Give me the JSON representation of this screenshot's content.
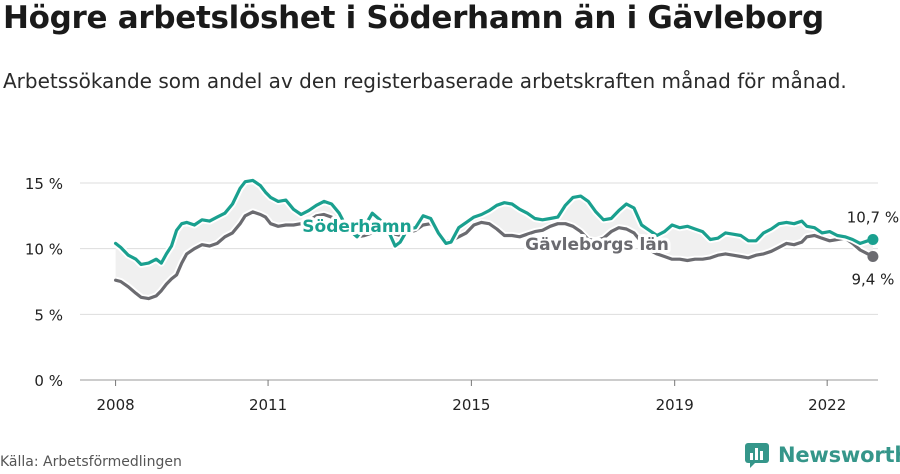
{
  "header": {
    "title": "Högre arbetslöshet i Söderhamn än i Gävleborg",
    "subtitle": "Arbetssökande som andel av den registerbaserade arbetskraften månad för månad."
  },
  "footer": {
    "source": "Källa: Arbetsförmedlingen",
    "brand": "Newsworthy"
  },
  "colors": {
    "soderhamn": "#1aa08f",
    "gavleborg": "#6b6b70",
    "fill": "#f0f0f0",
    "grid": "#dddddd"
  },
  "chart_data": {
    "type": "line",
    "title": "Högre arbetslöshet i Söderhamn än i Gävleborg",
    "ylim": [
      0,
      15
    ],
    "y_ticks": [
      "0 %",
      "5 %",
      "10 %",
      "15 %"
    ],
    "x_ticks": [
      "2008",
      "2011",
      "2015",
      "2019",
      "2022"
    ],
    "x_tick_values": [
      2008,
      2011,
      2015,
      2019,
      2022
    ],
    "x_range": [
      2007.3,
      2023.0
    ],
    "grid": true,
    "series": [
      {
        "name": "Söderhamn",
        "end_label": "10,7 %",
        "points": [
          [
            2008.0,
            10.4
          ],
          [
            2008.1,
            10.1
          ],
          [
            2008.25,
            9.5
          ],
          [
            2008.4,
            9.2
          ],
          [
            2008.5,
            8.8
          ],
          [
            2008.65,
            8.9
          ],
          [
            2008.8,
            9.2
          ],
          [
            2008.9,
            8.9
          ],
          [
            2009.0,
            9.6
          ],
          [
            2009.1,
            10.2
          ],
          [
            2009.2,
            11.4
          ],
          [
            2009.3,
            11.9
          ],
          [
            2009.4,
            12.0
          ],
          [
            2009.55,
            11.8
          ],
          [
            2009.7,
            12.2
          ],
          [
            2009.85,
            12.1
          ],
          [
            2010.0,
            12.4
          ],
          [
            2010.15,
            12.7
          ],
          [
            2010.3,
            13.4
          ],
          [
            2010.45,
            14.6
          ],
          [
            2010.55,
            15.1
          ],
          [
            2010.7,
            15.2
          ],
          [
            2010.85,
            14.8
          ],
          [
            2010.95,
            14.3
          ],
          [
            2011.05,
            13.9
          ],
          [
            2011.2,
            13.6
          ],
          [
            2011.35,
            13.7
          ],
          [
            2011.5,
            13.0
          ],
          [
            2011.65,
            12.6
          ],
          [
            2011.8,
            12.9
          ],
          [
            2011.95,
            13.3
          ],
          [
            2012.1,
            13.6
          ],
          [
            2012.25,
            13.4
          ],
          [
            2012.4,
            12.7
          ],
          [
            2012.55,
            11.6
          ],
          [
            2012.75,
            10.9
          ],
          [
            2012.9,
            11.7
          ],
          [
            2013.05,
            12.7
          ],
          [
            2013.2,
            12.2
          ],
          [
            2013.35,
            11.5
          ],
          [
            2013.5,
            10.2
          ],
          [
            2013.6,
            10.5
          ],
          [
            2013.75,
            11.5
          ],
          [
            2013.9,
            11.6
          ],
          [
            2014.05,
            12.5
          ],
          [
            2014.2,
            12.3
          ],
          [
            2014.35,
            11.2
          ],
          [
            2014.5,
            10.4
          ],
          [
            2014.6,
            10.5
          ],
          [
            2014.75,
            11.6
          ],
          [
            2014.9,
            12.0
          ],
          [
            2015.05,
            12.4
          ],
          [
            2015.2,
            12.6
          ],
          [
            2015.35,
            12.9
          ],
          [
            2015.5,
            13.3
          ],
          [
            2015.65,
            13.5
          ],
          [
            2015.8,
            13.4
          ],
          [
            2015.95,
            13.0
          ],
          [
            2016.1,
            12.7
          ],
          [
            2016.25,
            12.3
          ],
          [
            2016.4,
            12.2
          ],
          [
            2016.55,
            12.3
          ],
          [
            2016.7,
            12.4
          ],
          [
            2016.85,
            13.3
          ],
          [
            2017.0,
            13.9
          ],
          [
            2017.15,
            14.0
          ],
          [
            2017.3,
            13.6
          ],
          [
            2017.45,
            12.8
          ],
          [
            2017.6,
            12.2
          ],
          [
            2017.75,
            12.3
          ],
          [
            2017.9,
            12.9
          ],
          [
            2018.05,
            13.4
          ],
          [
            2018.2,
            13.1
          ],
          [
            2018.35,
            11.8
          ],
          [
            2018.5,
            11.4
          ],
          [
            2018.65,
            11.0
          ],
          [
            2018.8,
            11.3
          ],
          [
            2018.95,
            11.8
          ],
          [
            2019.1,
            11.6
          ],
          [
            2019.25,
            11.7
          ],
          [
            2019.4,
            11.5
          ],
          [
            2019.55,
            11.3
          ],
          [
            2019.7,
            10.7
          ],
          [
            2019.85,
            10.8
          ],
          [
            2020.0,
            11.2
          ],
          [
            2020.15,
            11.1
          ],
          [
            2020.3,
            11.0
          ],
          [
            2020.45,
            10.6
          ],
          [
            2020.6,
            10.6
          ],
          [
            2020.75,
            11.2
          ],
          [
            2020.9,
            11.5
          ],
          [
            2021.05,
            11.9
          ],
          [
            2021.2,
            12.0
          ],
          [
            2021.35,
            11.9
          ],
          [
            2021.5,
            12.1
          ],
          [
            2021.6,
            11.7
          ],
          [
            2021.75,
            11.6
          ],
          [
            2021.9,
            11.2
          ],
          [
            2022.05,
            11.3
          ],
          [
            2022.2,
            11.0
          ],
          [
            2022.35,
            10.9
          ],
          [
            2022.5,
            10.7
          ],
          [
            2022.65,
            10.4
          ],
          [
            2022.8,
            10.6
          ],
          [
            2022.9,
            10.7
          ]
        ]
      },
      {
        "name": "Gävleborgs län",
        "end_label": "9,4 %",
        "points": [
          [
            2008.0,
            7.6
          ],
          [
            2008.1,
            7.5
          ],
          [
            2008.25,
            7.1
          ],
          [
            2008.4,
            6.6
          ],
          [
            2008.5,
            6.3
          ],
          [
            2008.65,
            6.2
          ],
          [
            2008.8,
            6.4
          ],
          [
            2008.9,
            6.8
          ],
          [
            2009.0,
            7.3
          ],
          [
            2009.1,
            7.7
          ],
          [
            2009.2,
            8.0
          ],
          [
            2009.3,
            8.9
          ],
          [
            2009.4,
            9.6
          ],
          [
            2009.55,
            10.0
          ],
          [
            2009.7,
            10.3
          ],
          [
            2009.85,
            10.2
          ],
          [
            2010.0,
            10.4
          ],
          [
            2010.15,
            10.9
          ],
          [
            2010.3,
            11.2
          ],
          [
            2010.45,
            11.9
          ],
          [
            2010.55,
            12.5
          ],
          [
            2010.7,
            12.8
          ],
          [
            2010.85,
            12.6
          ],
          [
            2010.95,
            12.4
          ],
          [
            2011.05,
            11.9
          ],
          [
            2011.2,
            11.7
          ],
          [
            2011.35,
            11.8
          ],
          [
            2011.5,
            11.8
          ],
          [
            2011.65,
            11.9
          ],
          [
            2011.8,
            12.1
          ],
          [
            2011.95,
            12.5
          ],
          [
            2012.1,
            12.6
          ],
          [
            2012.25,
            12.4
          ],
          [
            2012.4,
            11.9
          ],
          [
            2012.55,
            11.4
          ],
          [
            2012.75,
            10.9
          ],
          [
            2012.9,
            11.0
          ],
          [
            2013.05,
            11.2
          ],
          [
            2013.2,
            11.4
          ],
          [
            2013.35,
            11.3
          ],
          [
            2013.5,
            11.1
          ],
          [
            2013.6,
            11.0
          ],
          [
            2013.75,
            11.2
          ],
          [
            2013.9,
            11.4
          ],
          [
            2014.05,
            11.8
          ],
          [
            2014.2,
            11.9
          ],
          [
            2014.35,
            11.2
          ],
          [
            2014.5,
            10.6
          ],
          [
            2014.6,
            10.6
          ],
          [
            2014.75,
            10.9
          ],
          [
            2014.9,
            11.2
          ],
          [
            2015.05,
            11.8
          ],
          [
            2015.2,
            12.0
          ],
          [
            2015.35,
            11.9
          ],
          [
            2015.5,
            11.5
          ],
          [
            2015.65,
            11.0
          ],
          [
            2015.8,
            11.0
          ],
          [
            2015.95,
            10.9
          ],
          [
            2016.1,
            11.1
          ],
          [
            2016.25,
            11.3
          ],
          [
            2016.4,
            11.4
          ],
          [
            2016.55,
            11.7
          ],
          [
            2016.7,
            11.9
          ],
          [
            2016.85,
            11.9
          ],
          [
            2017.0,
            11.7
          ],
          [
            2017.15,
            11.3
          ],
          [
            2017.3,
            10.7
          ],
          [
            2017.45,
            10.6
          ],
          [
            2017.6,
            10.8
          ],
          [
            2017.75,
            11.3
          ],
          [
            2017.9,
            11.6
          ],
          [
            2018.05,
            11.5
          ],
          [
            2018.2,
            11.2
          ],
          [
            2018.35,
            10.5
          ],
          [
            2018.5,
            9.9
          ],
          [
            2018.65,
            9.6
          ],
          [
            2018.8,
            9.4
          ],
          [
            2018.95,
            9.2
          ],
          [
            2019.1,
            9.2
          ],
          [
            2019.25,
            9.1
          ],
          [
            2019.4,
            9.2
          ],
          [
            2019.55,
            9.2
          ],
          [
            2019.7,
            9.3
          ],
          [
            2019.85,
            9.5
          ],
          [
            2020.0,
            9.6
          ],
          [
            2020.15,
            9.5
          ],
          [
            2020.3,
            9.4
          ],
          [
            2020.45,
            9.3
          ],
          [
            2020.6,
            9.5
          ],
          [
            2020.75,
            9.6
          ],
          [
            2020.9,
            9.8
          ],
          [
            2021.05,
            10.1
          ],
          [
            2021.2,
            10.4
          ],
          [
            2021.35,
            10.3
          ],
          [
            2021.5,
            10.5
          ],
          [
            2021.6,
            10.9
          ],
          [
            2021.75,
            11.0
          ],
          [
            2021.9,
            10.8
          ],
          [
            2022.05,
            10.6
          ],
          [
            2022.2,
            10.7
          ],
          [
            2022.35,
            10.8
          ],
          [
            2022.5,
            10.4
          ],
          [
            2022.65,
            9.9
          ],
          [
            2022.8,
            9.6
          ],
          [
            2022.9,
            9.4
          ]
        ]
      }
    ]
  }
}
